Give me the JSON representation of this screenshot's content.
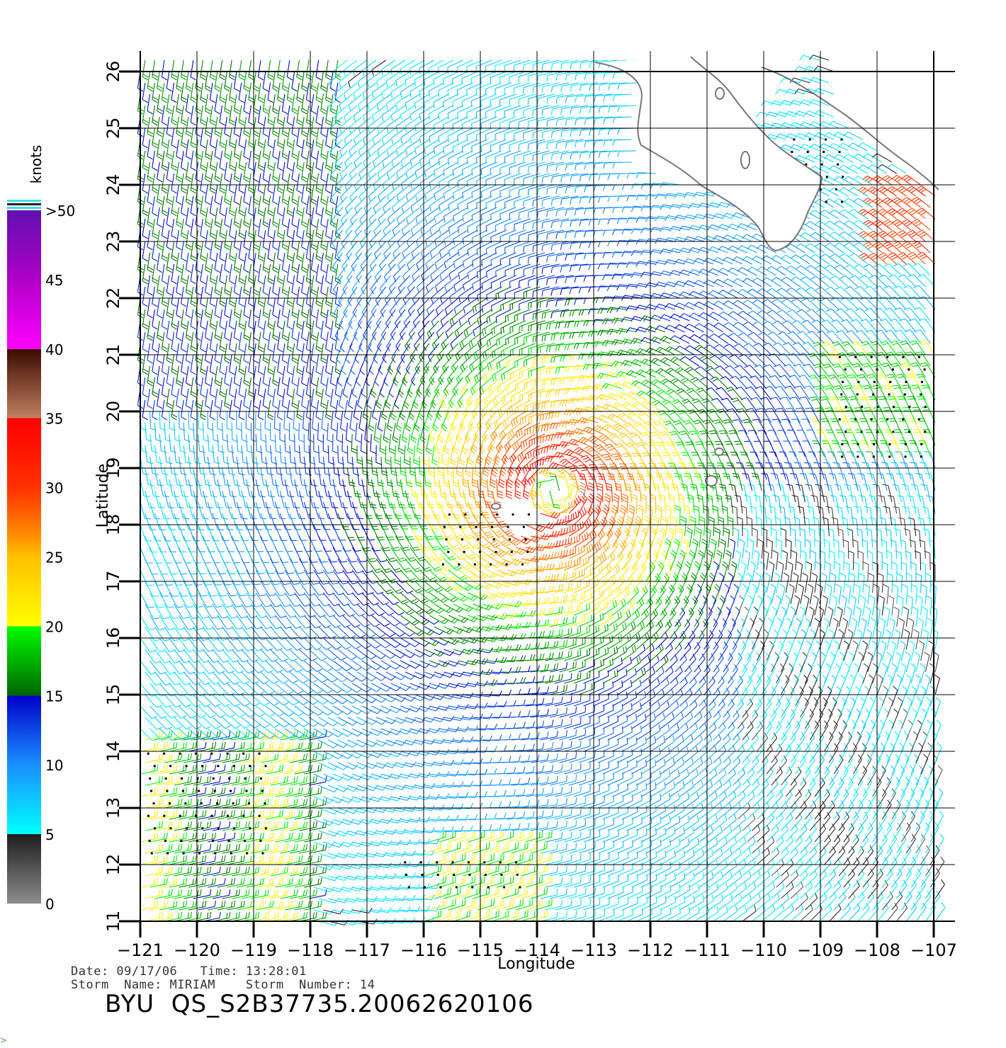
{
  "chart_data": {
    "type": "map",
    "xlabel": "Longitude",
    "ylabel": "Latitude",
    "xlim": [
      -121,
      -107
    ],
    "ylim": [
      11,
      26
    ],
    "x_ticks": [
      "-121",
      "-120",
      "-119",
      "-118",
      "-117",
      "-116",
      "-115",
      "-114",
      "-113",
      "-112",
      "-111",
      "-110",
      "-109",
      "-108",
      "-107"
    ],
    "y_ticks": [
      "11",
      "12",
      "13",
      "14",
      "15",
      "16",
      "17",
      "18",
      "19",
      "20",
      "21",
      "22",
      "23",
      "24",
      "25",
      "26"
    ],
    "grid": true,
    "storm_center": {
      "lon": -113.7,
      "lat": 18.6
    },
    "colorbar": {
      "title": "knots",
      "labels": [
        "0",
        "5",
        "10",
        "15",
        "20",
        "25",
        "30",
        "35",
        "40",
        "45",
        ">50"
      ],
      "stops": [
        {
          "v": 0,
          "color": "#8c8c8c"
        },
        {
          "v": 5,
          "color": "#1e1e1e"
        },
        {
          "v": 5,
          "color": "#00ffff"
        },
        {
          "v": 10,
          "color": "#1a8fff"
        },
        {
          "v": 15,
          "color": "#0000c8"
        },
        {
          "v": 15,
          "color": "#006400"
        },
        {
          "v": 20,
          "color": "#00ff00"
        },
        {
          "v": 20,
          "color": "#ffff00"
        },
        {
          "v": 25,
          "color": "#ffc000"
        },
        {
          "v": 27,
          "color": "#ff8000"
        },
        {
          "v": 30,
          "color": "#ff3000"
        },
        {
          "v": 35,
          "color": "#ff0000"
        },
        {
          "v": 35,
          "color": "#c08060"
        },
        {
          "v": 40,
          "color": "#3c0a00"
        },
        {
          "v": 40,
          "color": "#ff00ff"
        },
        {
          "v": 45,
          "color": "#b000c8"
        },
        {
          "v": 50,
          "color": "#6010b0"
        }
      ]
    }
  },
  "info": {
    "date_line": "Date: 09/17/06   Time: 13:28:01",
    "storm_line": "Storm  Name: MIRIAM    Storm  Number: 14",
    "title": "BYU  QS_S2B37735.20062620106"
  }
}
